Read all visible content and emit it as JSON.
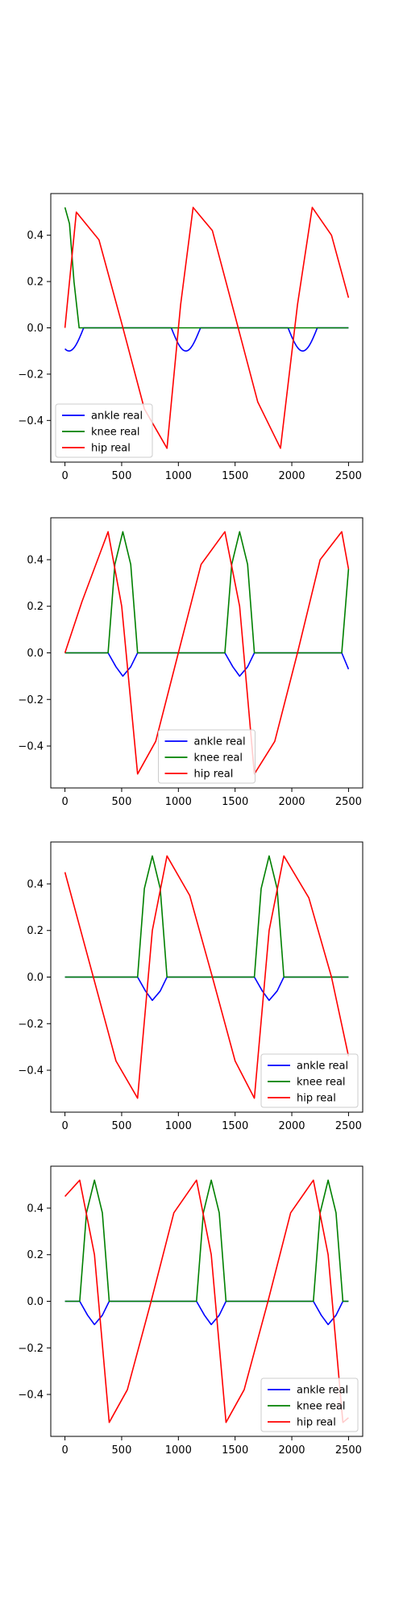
{
  "chart_data": [
    {
      "type": "line",
      "title": "",
      "xlabel": "",
      "ylabel": "",
      "xlim": [
        -125,
        2625
      ],
      "ylim": [
        -0.58,
        0.58
      ],
      "xticks": [
        0,
        500,
        1000,
        1500,
        2000,
        2500
      ],
      "yticks": [
        -0.4,
        -0.2,
        0.0,
        0.2,
        0.4
      ],
      "grid": false,
      "legend_position": "lower-left",
      "legend": [
        "ankle real",
        "knee real",
        "hip real"
      ],
      "colors": {
        "ankle real": "#0000ff",
        "knee real": "#008000",
        "hip real": "#ff0000"
      },
      "series": [
        {
          "name": "ankle real",
          "gait": {
            "period": 1030,
            "start_phase": 0.96,
            "duration": 2500
          },
          "x": [
            0,
            50,
            100,
            125,
            2500
          ],
          "y": [
            -0.1,
            -0.08,
            -0.03,
            0.0,
            0.0
          ]
        },
        {
          "name": "knee real",
          "x": [
            0,
            40,
            80,
            125,
            2500
          ],
          "y": [
            0.52,
            0.45,
            0.2,
            0.0,
            0.0
          ]
        },
        {
          "name": "hip real",
          "x": [
            0,
            100,
            300,
            500,
            700,
            900,
            1020,
            1130,
            1300,
            1500,
            1700,
            1900,
            2050,
            2180,
            2350,
            2500
          ],
          "y": [
            0.0,
            0.5,
            0.38,
            0.02,
            -0.35,
            -0.52,
            0.1,
            0.52,
            0.42,
            0.05,
            -0.32,
            -0.52,
            0.1,
            0.52,
            0.4,
            0.13
          ]
        }
      ]
    },
    {
      "type": "line",
      "title": "",
      "xlabel": "",
      "ylabel": "",
      "xlim": [
        -125,
        2625
      ],
      "ylim": [
        -0.58,
        0.58
      ],
      "xticks": [
        0,
        500,
        1000,
        1500,
        2000,
        2500
      ],
      "yticks": [
        -0.4,
        -0.2,
        0.0,
        0.2,
        0.4
      ],
      "grid": false,
      "legend_position": "lower-center",
      "legend": [
        "ankle real",
        "knee real",
        "hip real"
      ],
      "colors": {
        "ankle real": "#0000ff",
        "knee real": "#008000",
        "hip real": "#ff0000"
      },
      "series": [
        {
          "name": "ankle real",
          "x": [
            0,
            380,
            450,
            510,
            580,
            640,
            1410,
            1480,
            1540,
            1610,
            1670,
            2440,
            2500
          ],
          "y": [
            0.0,
            0.0,
            -0.06,
            -0.1,
            -0.06,
            0.0,
            0.0,
            -0.06,
            -0.1,
            -0.06,
            0.0,
            0.0,
            -0.07
          ]
        },
        {
          "name": "knee real",
          "x": [
            0,
            380,
            440,
            510,
            580,
            640,
            1410,
            1470,
            1540,
            1610,
            1670,
            2440,
            2500
          ],
          "y": [
            0.0,
            0.0,
            0.38,
            0.52,
            0.38,
            0.0,
            0.0,
            0.38,
            0.52,
            0.38,
            0.0,
            0.0,
            0.36
          ]
        },
        {
          "name": "hip real",
          "x": [
            0,
            150,
            380,
            500,
            640,
            800,
            1000,
            1200,
            1410,
            1540,
            1670,
            1850,
            2050,
            2250,
            2440,
            2500
          ],
          "y": [
            0.0,
            0.22,
            0.52,
            0.2,
            -0.52,
            -0.38,
            0.0,
            0.38,
            0.52,
            0.2,
            -0.52,
            -0.38,
            0.0,
            0.4,
            0.52,
            0.36
          ]
        }
      ]
    },
    {
      "type": "line",
      "title": "",
      "xlabel": "",
      "ylabel": "",
      "xlim": [
        -125,
        2625
      ],
      "ylim": [
        -0.58,
        0.58
      ],
      "xticks": [
        0,
        500,
        1000,
        1500,
        2000,
        2500
      ],
      "yticks": [
        -0.4,
        -0.2,
        0.0,
        0.2,
        0.4
      ],
      "grid": false,
      "legend_position": "lower-right",
      "legend": [
        "ankle real",
        "knee real",
        "hip real"
      ],
      "colors": {
        "ankle real": "#0000ff",
        "knee real": "#008000",
        "hip real": "#ff0000"
      },
      "series": [
        {
          "name": "ankle real",
          "x": [
            0,
            640,
            710,
            770,
            840,
            900,
            1670,
            1740,
            1800,
            1870,
            1930,
            2500
          ],
          "y": [
            0.0,
            0.0,
            -0.06,
            -0.1,
            -0.06,
            0.0,
            0.0,
            -0.06,
            -0.1,
            -0.06,
            0.0,
            0.0
          ]
        },
        {
          "name": "knee real",
          "x": [
            0,
            640,
            700,
            770,
            840,
            900,
            1670,
            1730,
            1800,
            1870,
            1930,
            2500
          ],
          "y": [
            0.0,
            0.0,
            0.38,
            0.52,
            0.38,
            0.0,
            0.0,
            0.38,
            0.52,
            0.38,
            0.0,
            0.0
          ]
        },
        {
          "name": "hip real",
          "x": [
            0,
            250,
            450,
            640,
            770,
            900,
            1100,
            1300,
            1500,
            1670,
            1800,
            1930,
            2150,
            2350,
            2500
          ],
          "y": [
            0.45,
            0.0,
            -0.36,
            -0.52,
            0.2,
            0.52,
            0.35,
            0.0,
            -0.36,
            -0.52,
            0.2,
            0.52,
            0.34,
            0.0,
            -0.34
          ]
        }
      ]
    },
    {
      "type": "line",
      "title": "",
      "xlabel": "",
      "ylabel": "",
      "xlim": [
        -125,
        2625
      ],
      "ylim": [
        -0.58,
        0.58
      ],
      "xticks": [
        0,
        500,
        1000,
        1500,
        2000,
        2500
      ],
      "yticks": [
        -0.4,
        -0.2,
        0.0,
        0.2,
        0.4
      ],
      "grid": false,
      "legend_position": "lower-right",
      "legend": [
        "ankle real",
        "knee real",
        "hip real"
      ],
      "colors": {
        "ankle real": "#0000ff",
        "knee real": "#008000",
        "hip real": "#ff0000"
      },
      "series": [
        {
          "name": "ankle real",
          "x": [
            0,
            130,
            200,
            260,
            330,
            390,
            1160,
            1230,
            1290,
            1360,
            1420,
            2190,
            2260,
            2320,
            2390,
            2450,
            2500
          ],
          "y": [
            0.0,
            0.0,
            -0.06,
            -0.1,
            -0.06,
            0.0,
            0.0,
            -0.06,
            -0.1,
            -0.06,
            0.0,
            0.0,
            -0.06,
            -0.1,
            -0.06,
            0.0,
            0.0
          ]
        },
        {
          "name": "knee real",
          "x": [
            0,
            130,
            190,
            260,
            330,
            390,
            1160,
            1220,
            1290,
            1360,
            1420,
            2190,
            2250,
            2320,
            2390,
            2450,
            2500
          ],
          "y": [
            0.0,
            0.0,
            0.38,
            0.52,
            0.38,
            0.0,
            0.0,
            0.38,
            0.52,
            0.38,
            0.0,
            0.0,
            0.38,
            0.52,
            0.38,
            0.0,
            0.0
          ]
        },
        {
          "name": "hip real",
          "x": [
            0,
            130,
            260,
            390,
            550,
            760,
            960,
            1160,
            1290,
            1420,
            1580,
            1790,
            1990,
            2190,
            2320,
            2450,
            2500
          ],
          "y": [
            0.45,
            0.52,
            0.2,
            -0.52,
            -0.38,
            0.0,
            0.38,
            0.52,
            0.2,
            -0.52,
            -0.38,
            0.0,
            0.38,
            0.52,
            0.2,
            -0.52,
            -0.5
          ]
        }
      ]
    }
  ]
}
